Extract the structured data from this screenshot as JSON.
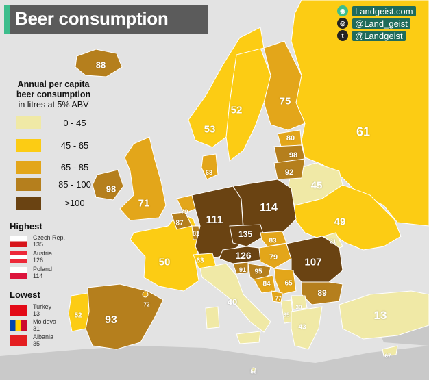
{
  "title": "Beer consumption",
  "social": {
    "website": "Landgeist.com",
    "instagram": "@Land_geist",
    "twitter": "@Landgeist"
  },
  "legend": {
    "title_line1": "Annual per capita",
    "title_line2": "beer consumption",
    "title_line3": "in litres at 5% ABV",
    "bins": [
      {
        "label": "0  -  45",
        "color": "#f0e9a6"
      },
      {
        "label": "45  -  65",
        "color": "#fccc14"
      },
      {
        "label": "65  -  85",
        "color": "#e3a61a"
      },
      {
        "label": "85  -  100",
        "color": "#b57f1d"
      },
      {
        "label": ">100",
        "color": "#6a4312"
      }
    ]
  },
  "highest": {
    "heading": "Highest",
    "items": [
      {
        "country": "Czech Rep.",
        "value": "135"
      },
      {
        "country": "Austria",
        "value": "126"
      },
      {
        "country": "Poland",
        "value": "114"
      }
    ]
  },
  "lowest": {
    "heading": "Lowest",
    "items": [
      {
        "country": "Turkey",
        "value": "13"
      },
      {
        "country": "Moldova",
        "value": "31"
      },
      {
        "country": "Albania",
        "value": "35"
      }
    ]
  },
  "countries": [
    {
      "name": "Iceland",
      "value": "88"
    },
    {
      "name": "Ireland",
      "value": "98"
    },
    {
      "name": "United Kingdom",
      "value": "71"
    },
    {
      "name": "Norway",
      "value": "53"
    },
    {
      "name": "Sweden",
      "value": "52"
    },
    {
      "name": "Finland",
      "value": "75"
    },
    {
      "name": "Denmark",
      "value": "68"
    },
    {
      "name": "Estonia",
      "value": "80"
    },
    {
      "name": "Latvia",
      "value": "98"
    },
    {
      "name": "Lithuania",
      "value": "92"
    },
    {
      "name": "Russia",
      "value": "61"
    },
    {
      "name": "Belarus",
      "value": "45"
    },
    {
      "name": "Ukraine",
      "value": "49"
    },
    {
      "name": "Netherlands",
      "value": "79"
    },
    {
      "name": "Belgium",
      "value": "87"
    },
    {
      "name": "Luxembourg",
      "value": "81"
    },
    {
      "name": "Germany",
      "value": "111"
    },
    {
      "name": "Poland",
      "value": "114"
    },
    {
      "name": "Czech Republic",
      "value": "135"
    },
    {
      "name": "Slovakia",
      "value": "83"
    },
    {
      "name": "Austria",
      "value": "126"
    },
    {
      "name": "Hungary",
      "value": "79"
    },
    {
      "name": "Moldova",
      "value": "31"
    },
    {
      "name": "Romania",
      "value": "107"
    },
    {
      "name": "France",
      "value": "50"
    },
    {
      "name": "Switzerland",
      "value": "63"
    },
    {
      "name": "Slovenia",
      "value": "91"
    },
    {
      "name": "Croatia",
      "value": "95"
    },
    {
      "name": "Bosnia",
      "value": "84"
    },
    {
      "name": "Serbia",
      "value": "65"
    },
    {
      "name": "Montenegro",
      "value": "77"
    },
    {
      "name": "Bulgaria",
      "value": "89"
    },
    {
      "name": "Italy",
      "value": "40"
    },
    {
      "name": "North Macedonia",
      "value": "39"
    },
    {
      "name": "Albania",
      "value": "35"
    },
    {
      "name": "Greece",
      "value": "43"
    },
    {
      "name": "Turkey",
      "value": "13"
    },
    {
      "name": "Spain",
      "value": "93"
    },
    {
      "name": "Portugal",
      "value": "52"
    },
    {
      "name": "Andorra",
      "value": "72"
    },
    {
      "name": "Cyprus",
      "value": "67"
    },
    {
      "name": "Malta",
      "value": "56"
    }
  ]
}
